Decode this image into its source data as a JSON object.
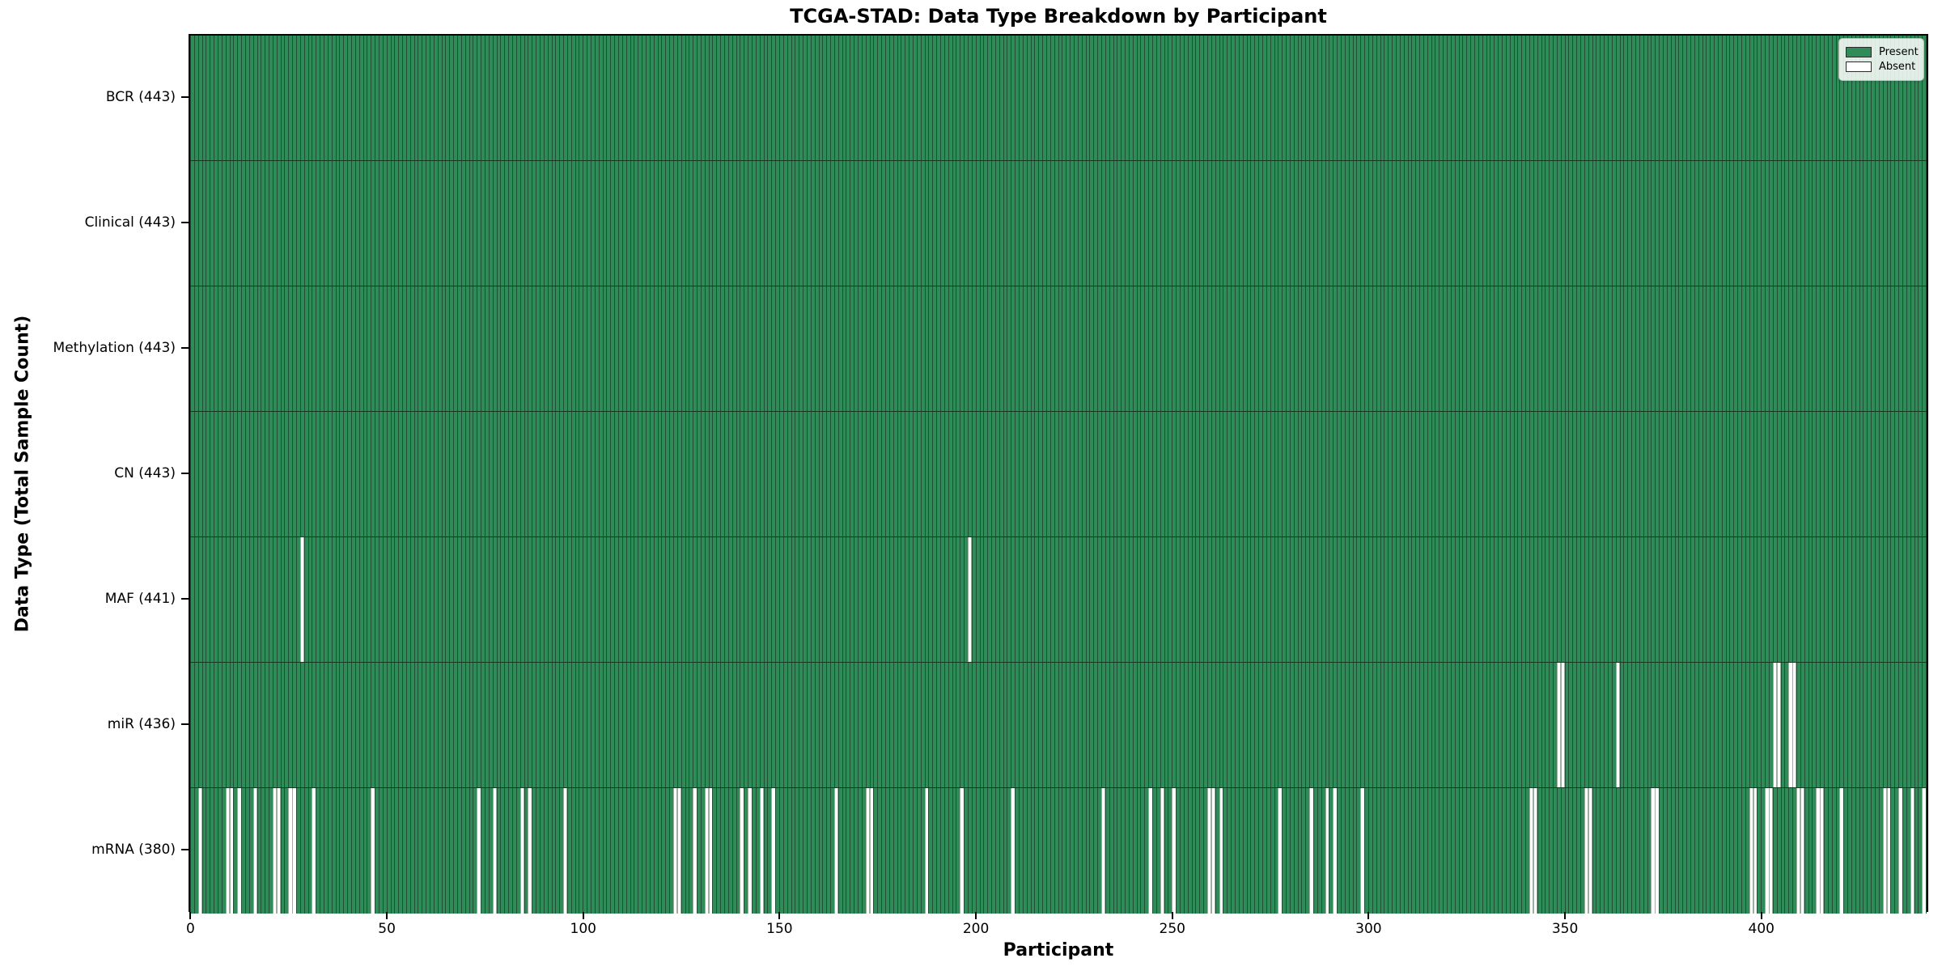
{
  "title": "TCGA-STAD: Data Type Breakdown by Participant",
  "chart_data": {
    "type": "heatmap",
    "title": "TCGA-STAD: Data Type Breakdown by Participant",
    "xlabel": "Participant",
    "ylabel": "Data Type (Total Sample Count)",
    "x_range": [
      -0.5,
      442.5
    ],
    "n_participants": 443,
    "x_ticks": [
      0,
      50,
      100,
      150,
      200,
      250,
      300,
      350,
      400
    ],
    "grid": false,
    "legend_position": "upper right",
    "legend": {
      "entries": [
        {
          "label": "Present",
          "color": "#2f8b58",
          "edge": "#2a2a2a"
        },
        {
          "label": "Absent",
          "color": "#ffffff",
          "edge": "#2a2a2a"
        }
      ]
    },
    "colors": {
      "present": "#2f8b58",
      "absent": "#ffffff",
      "bar_edge": "#1d5034",
      "row_separator": "#14381f",
      "spine": "#000000"
    },
    "rows": [
      {
        "name": "BCR",
        "label": "BCR (443)",
        "present_count": 443,
        "absent_participants": []
      },
      {
        "name": "Clinical",
        "label": "Clinical (443)",
        "present_count": 443,
        "absent_participants": []
      },
      {
        "name": "Methylation",
        "label": "Methylation (443)",
        "present_count": 443,
        "absent_participants": []
      },
      {
        "name": "CN",
        "label": "CN (443)",
        "present_count": 443,
        "absent_participants": []
      },
      {
        "name": "MAF",
        "label": "MAF (441)",
        "present_count": 441,
        "absent_participants": [
          28,
          198
        ]
      },
      {
        "name": "miR",
        "label": "miR (436)",
        "present_count": 436,
        "absent_participants": [
          348,
          349,
          363,
          403,
          404,
          407,
          408
        ]
      },
      {
        "name": "mRNA",
        "label": "mRNA (380)",
        "present_count": 380,
        "absent_participants": [
          2,
          9,
          10,
          12,
          16,
          21,
          22,
          25,
          26,
          31,
          46,
          73,
          77,
          84,
          86,
          95,
          123,
          124,
          128,
          131,
          132,
          140,
          142,
          145,
          148,
          164,
          172,
          173,
          187,
          196,
          209,
          232,
          244,
          247,
          250,
          259,
          260,
          262,
          277,
          285,
          289,
          291,
          298,
          341,
          342,
          355,
          356,
          372,
          373,
          397,
          398,
          401,
          402,
          409,
          410,
          414,
          415,
          420,
          431,
          432,
          435,
          438,
          441
        ]
      }
    ]
  }
}
